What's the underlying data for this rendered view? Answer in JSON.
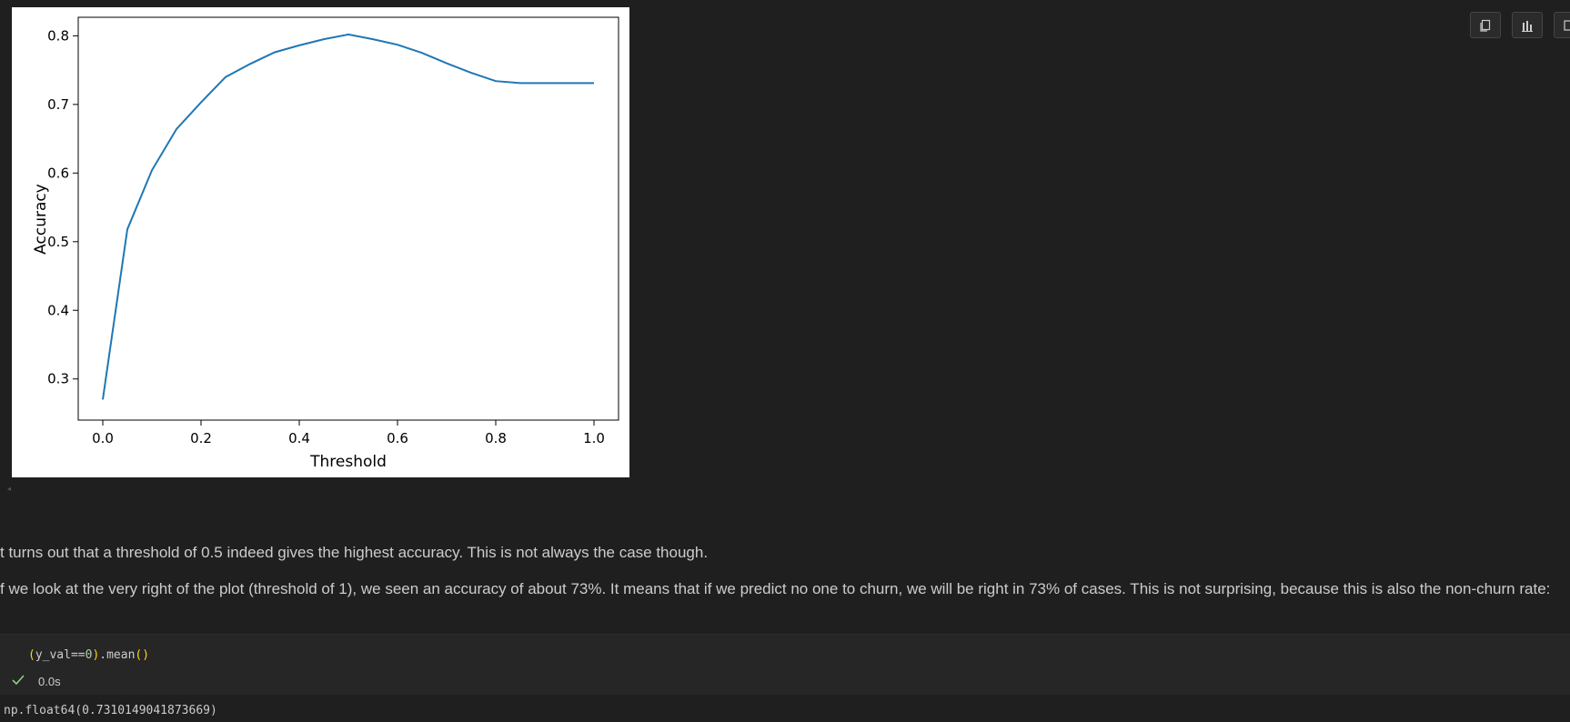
{
  "chart_data": {
    "type": "line",
    "title": "",
    "xlabel": "Threshold",
    "ylabel": "Accuracy",
    "xlim": [
      -0.05,
      1.05
    ],
    "ylim": [
      0.24,
      0.827
    ],
    "xticks": [
      0.0,
      0.2,
      0.4,
      0.6,
      0.8,
      1.0
    ],
    "xtick_labels": [
      "0.0",
      "0.2",
      "0.4",
      "0.6",
      "0.8",
      "1.0"
    ],
    "yticks": [
      0.3,
      0.4,
      0.5,
      0.6,
      0.7,
      0.8
    ],
    "ytick_labels": [
      "0.3",
      "0.4",
      "0.5",
      "0.6",
      "0.7",
      "0.8"
    ],
    "grid": false,
    "line_color": "#1f77b4",
    "series": [
      {
        "x": [
          0.0,
          0.05,
          0.1,
          0.15,
          0.2,
          0.25,
          0.3,
          0.35,
          0.4,
          0.45,
          0.5,
          0.55,
          0.6,
          0.65,
          0.7,
          0.75,
          0.8,
          0.85,
          0.9,
          0.95,
          1.0
        ],
        "values": [
          0.27,
          0.518,
          0.604,
          0.664,
          0.703,
          0.74,
          0.759,
          0.776,
          0.786,
          0.795,
          0.802,
          0.795,
          0.787,
          0.775,
          0.76,
          0.746,
          0.734,
          0.731,
          0.731,
          0.731,
          0.731
        ]
      }
    ]
  },
  "toolbar": {
    "buttons": [
      "copy-icon",
      "chart-icon",
      "more-icon"
    ]
  },
  "markdown": {
    "line1": "t turns out that a threshold of 0.5 indeed gives the highest accuracy. This is not always the case though.",
    "line2": "f we look at the very right of the plot (threshold of 1), we seen an accuracy of about 73%. It means that if we predict no one to churn, we will be right in 73% of cases. This is not surprising, because this is also the non-churn rate:"
  },
  "code_cell": {
    "open_paren": "(",
    "var": "y_val",
    "op": "==",
    "num": "0",
    "close_paren": ")",
    "method": ".mean",
    "call": "()",
    "exec_time": "0.0s",
    "output": "np.float64(0.7310149041873669)"
  }
}
